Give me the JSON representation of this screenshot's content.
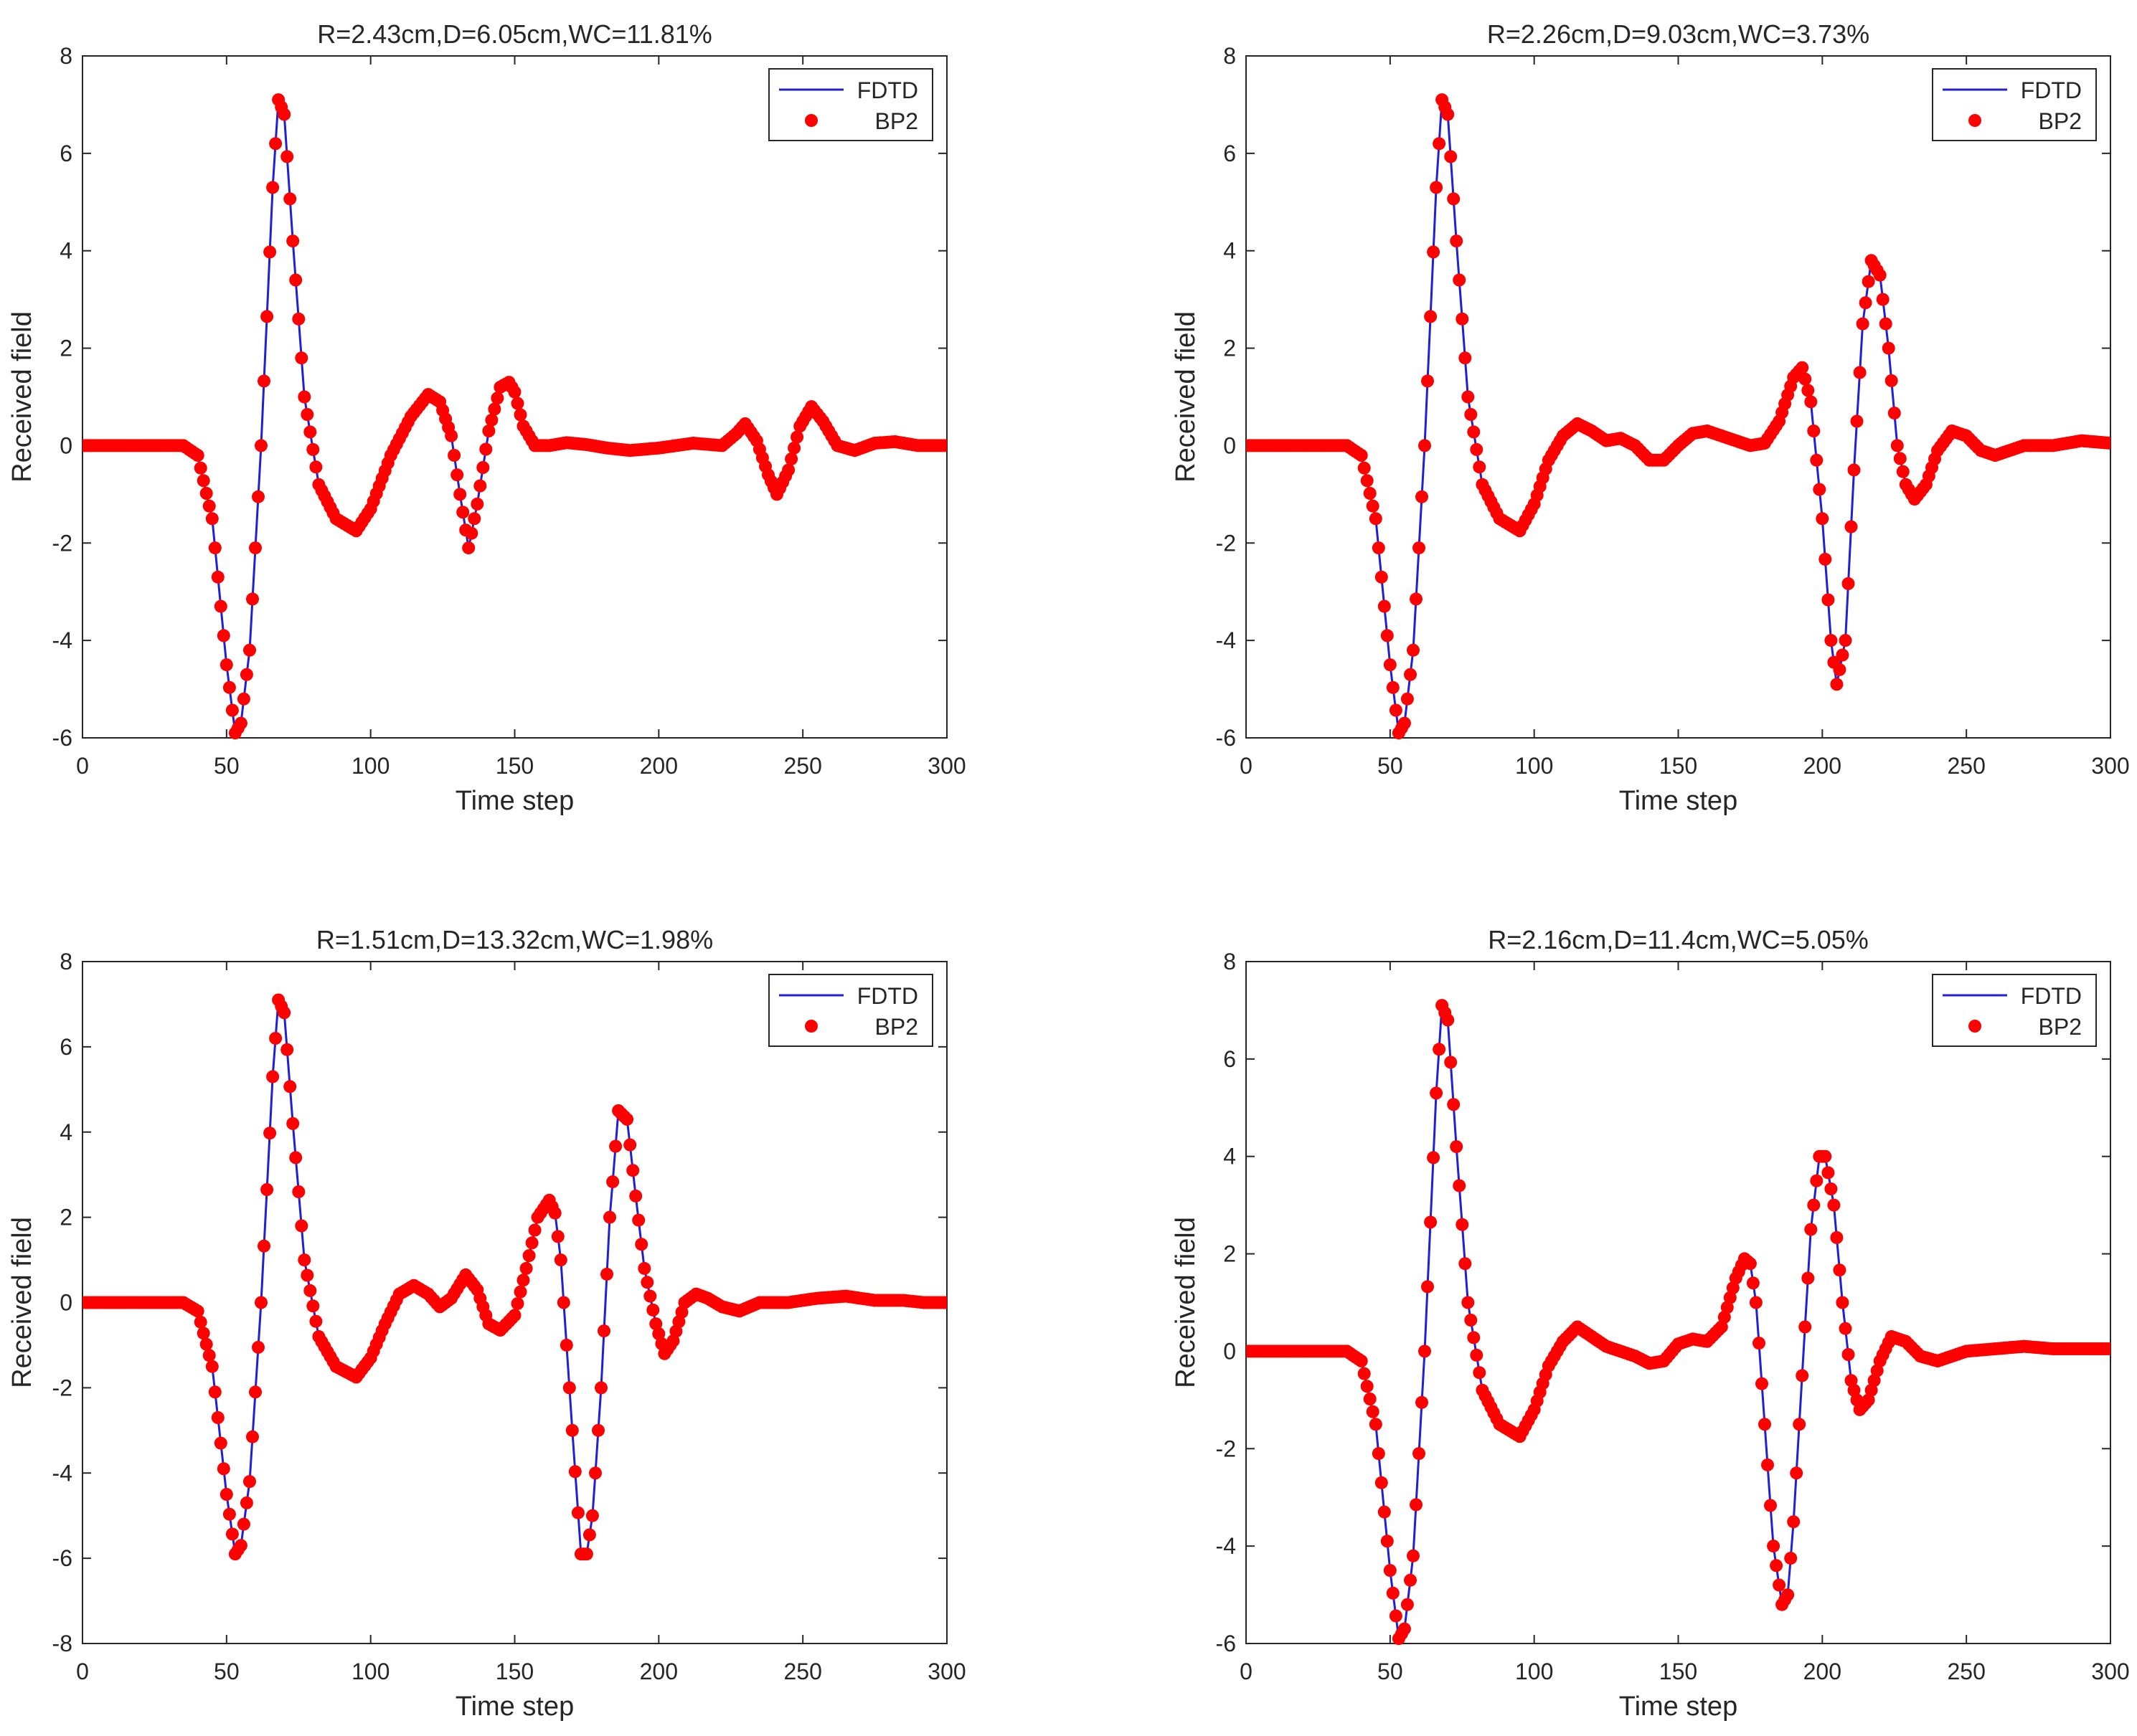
{
  "figure": {
    "layout": "2x2"
  },
  "colors": {
    "fdtd": "#1f1fd6",
    "bp2": "#ff0000",
    "axis": "#262626",
    "background": "#ffffff"
  },
  "chart_data": [
    {
      "type": "line",
      "title": "R=2.43cm,D=6.05cm,WC=11.81%",
      "xlabel": "Time step",
      "ylabel": "Received field",
      "xlim": [
        0,
        300
      ],
      "ylim": [
        -6,
        8
      ],
      "xticks": [
        0,
        50,
        100,
        150,
        200,
        250,
        300
      ],
      "yticks": [
        -6,
        -4,
        -2,
        0,
        2,
        4,
        6,
        8
      ],
      "legend": {
        "position": "top-right",
        "entries": [
          "FDTD",
          "BP2"
        ]
      },
      "series": [
        {
          "name": "FDTD",
          "style": "line",
          "source": "shared"
        },
        {
          "name": "BP2",
          "style": "markers",
          "source": "shared"
        }
      ],
      "x": [
        0,
        35,
        40,
        45,
        50,
        53,
        55,
        58,
        62,
        66,
        68,
        70,
        73,
        77,
        82,
        88,
        95,
        100,
        107,
        114,
        120,
        124,
        128,
        131,
        134,
        137,
        141,
        145,
        148,
        150,
        153,
        157,
        162,
        168,
        175,
        182,
        190,
        200,
        212,
        222,
        227,
        230,
        234,
        238,
        241,
        245,
        249,
        253,
        257,
        262,
        268,
        275,
        282,
        290,
        300
      ],
      "y": [
        0,
        0,
        -0.2,
        -1.5,
        -4.5,
        -5.9,
        -5.7,
        -4.2,
        0,
        5.3,
        7.1,
        6.8,
        4.2,
        1.0,
        -0.8,
        -1.5,
        -1.75,
        -1.3,
        -0.2,
        0.6,
        1.05,
        0.9,
        0.2,
        -1.0,
        -2.1,
        -1.2,
        0.3,
        1.2,
        1.3,
        1.1,
        0.4,
        0,
        0,
        0.06,
        0.02,
        -0.05,
        -0.1,
        -0.05,
        0.05,
        0,
        0.25,
        0.45,
        0.1,
        -0.6,
        -1.0,
        -0.5,
        0.4,
        0.8,
        0.5,
        0,
        -0.1,
        0.05,
        0.08,
        0,
        0
      ]
    },
    {
      "type": "line",
      "title": "R=2.26cm,D=9.03cm,WC=3.73%",
      "xlabel": "Time step",
      "ylabel": "Received field",
      "xlim": [
        0,
        300
      ],
      "ylim": [
        -6,
        8
      ],
      "xticks": [
        0,
        50,
        100,
        150,
        200,
        250,
        300
      ],
      "yticks": [
        -6,
        -4,
        -2,
        0,
        2,
        4,
        6,
        8
      ],
      "legend": {
        "position": "top-right",
        "entries": [
          "FDTD",
          "BP2"
        ]
      },
      "series": [
        {
          "name": "FDTD",
          "style": "line",
          "source": "shared"
        },
        {
          "name": "BP2",
          "style": "markers",
          "source": "shared"
        }
      ],
      "x": [
        0,
        35,
        40,
        45,
        50,
        53,
        55,
        58,
        62,
        66,
        68,
        70,
        73,
        77,
        82,
        88,
        95,
        100,
        105,
        110,
        115,
        120,
        125,
        130,
        135,
        140,
        145,
        150,
        155,
        160,
        165,
        170,
        175,
        180,
        185,
        190,
        193,
        196,
        200,
        203,
        205,
        208,
        211,
        214,
        217,
        220,
        223,
        226,
        229,
        232,
        236,
        240,
        245,
        250,
        255,
        260,
        270,
        280,
        290,
        300
      ],
      "y": [
        0,
        0,
        -0.2,
        -1.5,
        -4.5,
        -5.9,
        -5.7,
        -4.2,
        0,
        5.3,
        7.1,
        6.8,
        4.2,
        1.0,
        -0.8,
        -1.5,
        -1.75,
        -1.2,
        -0.3,
        0.2,
        0.45,
        0.3,
        0.1,
        0.15,
        0,
        -0.3,
        -0.3,
        0,
        0.25,
        0.3,
        0.2,
        0.1,
        0,
        0.05,
        0.5,
        1.4,
        1.6,
        0.9,
        -1.5,
        -4.0,
        -4.9,
        -4.0,
        -0.5,
        2.5,
        3.8,
        3.5,
        2.0,
        0,
        -0.8,
        -1.1,
        -0.8,
        -0.1,
        0.3,
        0.2,
        -0.1,
        -0.2,
        0,
        0,
        0.1,
        0.05
      ]
    },
    {
      "type": "line",
      "title": "R=1.51cm,D=13.32cm,WC=1.98%",
      "xlabel": "Time step",
      "ylabel": "Received field",
      "xlim": [
        0,
        300
      ],
      "ylim": [
        -8,
        8
      ],
      "xticks": [
        0,
        50,
        100,
        150,
        200,
        250,
        300
      ],
      "yticks": [
        -8,
        -6,
        -4,
        -2,
        0,
        2,
        4,
        6,
        8
      ],
      "legend": {
        "position": "top-right",
        "entries": [
          "FDTD",
          "BP2"
        ]
      },
      "series": [
        {
          "name": "FDTD",
          "style": "line",
          "source": "shared"
        },
        {
          "name": "BP2",
          "style": "markers",
          "source": "shared"
        }
      ],
      "x": [
        0,
        35,
        40,
        45,
        50,
        53,
        55,
        58,
        62,
        66,
        68,
        70,
        73,
        77,
        82,
        88,
        95,
        100,
        105,
        110,
        115,
        120,
        124,
        128,
        133,
        137,
        141,
        145,
        150,
        154,
        158,
        162,
        164,
        166,
        170,
        173,
        175,
        177,
        180,
        183,
        186,
        189,
        192,
        195,
        199,
        202,
        205,
        209,
        213,
        217,
        222,
        228,
        235,
        245,
        255,
        265,
        275,
        285,
        292,
        300
      ],
      "y": [
        0,
        0,
        -0.2,
        -1.5,
        -4.5,
        -5.9,
        -5.7,
        -4.2,
        0,
        5.3,
        7.1,
        6.8,
        4.2,
        1.0,
        -0.8,
        -1.5,
        -1.75,
        -1.3,
        -0.5,
        0.2,
        0.4,
        0.2,
        -0.1,
        0.1,
        0.65,
        0.3,
        -0.5,
        -0.65,
        -0.3,
        0.8,
        2.0,
        2.4,
        2.1,
        1.0,
        -3.0,
        -5.9,
        -5.9,
        -5.0,
        -2.0,
        2.0,
        4.5,
        4.3,
        2.5,
        0.8,
        -0.5,
        -1.2,
        -0.9,
        0,
        0.2,
        0.1,
        -0.1,
        -0.2,
        0,
        0,
        0.1,
        0.15,
        0.05,
        0.05,
        0,
        0
      ]
    },
    {
      "type": "line",
      "title": "R=2.16cm,D=11.4cm,WC=5.05%",
      "xlabel": "Time step",
      "ylabel": "Received field",
      "xlim": [
        0,
        300
      ],
      "ylim": [
        -6,
        8
      ],
      "xticks": [
        0,
        50,
        100,
        150,
        200,
        250,
        300
      ],
      "yticks": [
        -6,
        -4,
        -2,
        0,
        2,
        4,
        6,
        8
      ],
      "legend": {
        "position": "top-right",
        "entries": [
          "FDTD",
          "BP2"
        ]
      },
      "series": [
        {
          "name": "FDTD",
          "style": "line",
          "source": "shared"
        },
        {
          "name": "BP2",
          "style": "markers",
          "source": "shared"
        }
      ],
      "x": [
        0,
        35,
        40,
        45,
        50,
        53,
        55,
        58,
        62,
        66,
        68,
        70,
        73,
        77,
        82,
        88,
        95,
        100,
        105,
        110,
        115,
        120,
        125,
        130,
        135,
        140,
        145,
        150,
        155,
        160,
        165,
        170,
        173,
        175,
        177,
        180,
        183,
        186,
        188,
        190,
        193,
        196,
        199,
        201,
        204,
        207,
        210,
        213,
        216,
        220,
        224,
        229,
        234,
        240,
        250,
        260,
        270,
        280,
        290,
        300
      ],
      "y": [
        0,
        0,
        -0.2,
        -1.5,
        -4.5,
        -5.9,
        -5.7,
        -4.2,
        0,
        5.3,
        7.1,
        6.8,
        4.2,
        1.0,
        -0.8,
        -1.5,
        -1.75,
        -1.2,
        -0.3,
        0.2,
        0.5,
        0.3,
        0.1,
        0,
        -0.1,
        -0.25,
        -0.2,
        0.15,
        0.25,
        0.2,
        0.5,
        1.5,
        1.9,
        1.8,
        1.0,
        -1.5,
        -4.0,
        -5.2,
        -5.0,
        -3.5,
        -0.5,
        2.5,
        4.0,
        4.0,
        3.0,
        1.0,
        -0.6,
        -1.2,
        -1.0,
        -0.2,
        0.3,
        0.2,
        -0.1,
        -0.2,
        0,
        0.05,
        0.1,
        0.05,
        0.05,
        0.05
      ]
    }
  ]
}
